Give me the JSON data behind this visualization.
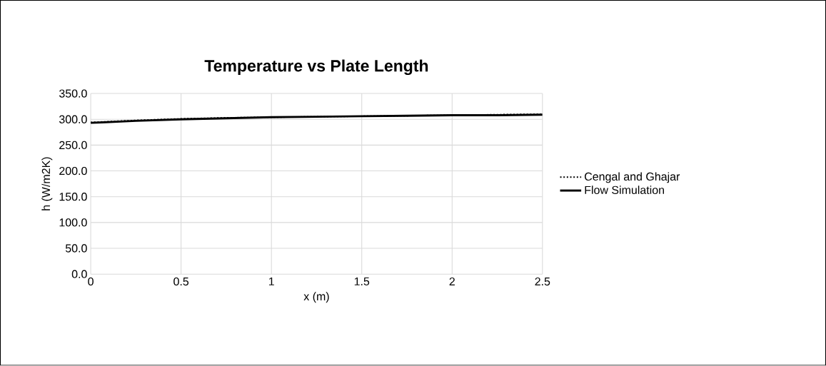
{
  "chart_data": {
    "type": "line",
    "title": "Temperature vs Plate Length",
    "xlabel": "x (m)",
    "ylabel": "h (W/m2K)",
    "xlim": [
      0,
      2.5
    ],
    "ylim": [
      0,
      350
    ],
    "xticks": [
      0,
      0.5,
      1,
      1.5,
      2,
      2.5
    ],
    "yticks": [
      {
        "value": 0,
        "label": "0.0"
      },
      {
        "value": 50,
        "label": "50.0"
      },
      {
        "value": 100,
        "label": "100.0"
      },
      {
        "value": 150,
        "label": "150.0"
      },
      {
        "value": 200,
        "label": "200.0"
      },
      {
        "value": 250,
        "label": "250.0"
      },
      {
        "value": 300,
        "label": "300.0"
      },
      {
        "value": 350,
        "label": "350.0"
      }
    ],
    "grid": true,
    "legend": "right",
    "series": [
      {
        "name": "Cengal and Ghajar",
        "color": "#000000",
        "line_style": "dotted",
        "x": [
          0,
          0.25,
          0.5,
          0.75,
          1,
          1.25,
          1.5,
          1.75,
          2,
          2.25,
          2.5
        ],
        "values": [
          294,
          298,
          301,
          303,
          304,
          305,
          306,
          307,
          308,
          309,
          310
        ]
      },
      {
        "name": "Flow Simulation",
        "color": "#000000",
        "line_style": "solid",
        "x": [
          0,
          0.25,
          0.5,
          0.75,
          1,
          1.25,
          1.5,
          1.75,
          2,
          2.25,
          2.5
        ],
        "values": [
          293,
          297,
          300,
          302,
          304,
          305,
          306,
          307,
          308,
          308,
          309
        ]
      }
    ]
  }
}
